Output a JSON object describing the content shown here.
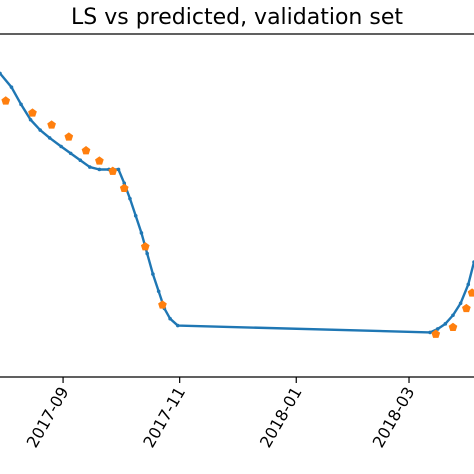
{
  "chart_data": {
    "type": "line",
    "title": "LS vs predicted, validation set",
    "xlabel": "",
    "ylabel": "",
    "x_tick_labels": [
      "2017-09",
      "2017-11",
      "2018-01",
      "2018-03"
    ],
    "x_ticks": [
      "2017-09-01",
      "2017-11-01",
      "2018-01-01",
      "2018-03-01"
    ],
    "xlim": [
      "2017-07-30",
      "2018-04-04"
    ],
    "ylim": [
      0.0,
      1.0
    ],
    "grid": false,
    "legend": "none",
    "series": [
      {
        "kind": "line",
        "color": "#1f77b4",
        "marker": "dot",
        "x": [
          "2017-07-30",
          "2017-08-05",
          "2017-08-10",
          "2017-08-15",
          "2017-08-20",
          "2017-08-25",
          "2017-08-31",
          "2017-09-05",
          "2017-09-10",
          "2017-09-15",
          "2017-09-20",
          "2017-09-25",
          "2017-09-30",
          "2017-10-03",
          "2017-10-06",
          "2017-10-09",
          "2017-10-12",
          "2017-10-15",
          "2017-10-18",
          "2017-10-21",
          "2017-10-24",
          "2017-10-27",
          "2017-10-31",
          "2018-03-12",
          "2018-03-16",
          "2018-03-20",
          "2018-03-24",
          "2018-03-28",
          "2018-04-01",
          "2018-04-04"
        ],
        "y": [
          0.885,
          0.845,
          0.795,
          0.75,
          0.72,
          0.697,
          0.672,
          0.652,
          0.632,
          0.612,
          0.605,
          0.605,
          0.605,
          0.565,
          0.52,
          0.47,
          0.42,
          0.36,
          0.3,
          0.25,
          0.2,
          0.17,
          0.15,
          0.13,
          0.14,
          0.155,
          0.18,
          0.215,
          0.27,
          0.335
        ]
      },
      {
        "kind": "scatter",
        "color": "#ff7f0e",
        "marker": "pentagon",
        "x": [
          "2017-08-02",
          "2017-08-16",
          "2017-08-26",
          "2017-09-04",
          "2017-09-13",
          "2017-09-20",
          "2017-09-27",
          "2017-10-03",
          "2017-10-14",
          "2017-10-23",
          "2018-03-15",
          "2018-03-24",
          "2018-03-31",
          "2018-04-03"
        ],
        "y": [
          0.805,
          0.77,
          0.735,
          0.7,
          0.66,
          0.63,
          0.6,
          0.55,
          0.38,
          0.21,
          0.125,
          0.145,
          0.2,
          0.245
        ]
      }
    ]
  }
}
